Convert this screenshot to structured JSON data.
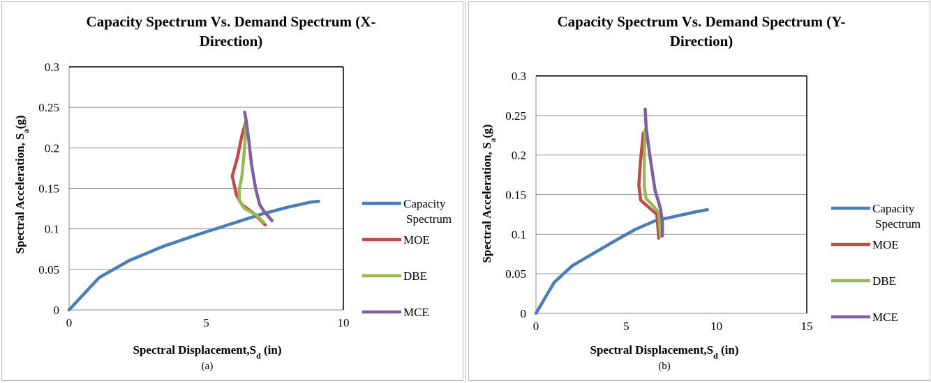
{
  "charts": [
    {
      "id": "a",
      "title_line1": "Capacity Spectrum Vs. Demand Spectrum (X-",
      "title_line2": "Direction)",
      "xlabel_main": "Spectral  Displacement,S",
      "xlabel_sub": "d",
      "xlabel_unit": " (in)",
      "ylabel_main": "Spectral Acceleration, S",
      "ylabel_sub": "a",
      "ylabel_unit": "(g)",
      "caption": "(a)",
      "legend": [
        "Capacity Spectrum",
        "MOE",
        "DBE",
        "MCE"
      ],
      "x_ticks": [
        "0",
        "5",
        "10"
      ],
      "y_ticks": [
        "0",
        "0.05",
        "0.1",
        "0.15",
        "0.2",
        "0.25",
        "0.3"
      ]
    },
    {
      "id": "b",
      "title_line1": "Capacity Spectrum Vs. Demand Spectrum (Y-",
      "title_line2": "Direction)",
      "xlabel_main": "Spectral  Displacement,S",
      "xlabel_sub": "d",
      "xlabel_unit": " (in)",
      "ylabel_main": "Spectral Acceleration, S",
      "ylabel_sub": "a",
      "ylabel_unit": "(g)",
      "caption": "(b)",
      "legend": [
        "Capacity Spectrum",
        "MOE",
        "DBE",
        "MCE"
      ],
      "x_ticks": [
        "0",
        "5",
        "10",
        "15"
      ],
      "y_ticks": [
        "0",
        "0.05",
        "0.1",
        "0.15",
        "0.2",
        "0.25",
        "0.3"
      ]
    }
  ],
  "colors": {
    "capacity": "#4a7ebb",
    "moe": "#be4b48",
    "dbe": "#98b954",
    "mce": "#7d60a0",
    "grid": "#8c8c8c"
  },
  "chart_data": [
    {
      "type": "line",
      "title": "Capacity Spectrum Vs. Demand Spectrum (X-Direction)",
      "xlabel": "Spectral Displacement,Sd (in)",
      "ylabel": "Spectral Acceleration, Sa(g)",
      "xlim": [
        0,
        10
      ],
      "ylim": [
        0,
        0.3
      ],
      "x_ticks": [
        0,
        5,
        10
      ],
      "y_ticks": [
        0,
        0.05,
        0.1,
        0.15,
        0.2,
        0.25,
        0.3
      ],
      "grid": true,
      "legend_position": "right",
      "series": [
        {
          "name": "Capacity Spectrum",
          "color": "#4a7ebb",
          "x": [
            0,
            1.1,
            2.2,
            3.4,
            4.6,
            5.8,
            7.0,
            8.0,
            8.8,
            9.1
          ],
          "y": [
            0,
            0.04,
            0.061,
            0.078,
            0.092,
            0.105,
            0.118,
            0.127,
            0.133,
            0.134
          ]
        },
        {
          "name": "MOE",
          "color": "#be4b48",
          "x": [
            7.15,
            6.7,
            6.3,
            6.1,
            5.95,
            6.15,
            6.3,
            6.45
          ],
          "y": [
            0.105,
            0.12,
            0.13,
            0.142,
            0.165,
            0.19,
            0.215,
            0.233
          ]
        },
        {
          "name": "DBE",
          "color": "#98b954",
          "x": [
            7.1,
            6.8,
            6.4,
            6.2,
            6.2,
            6.3,
            6.4,
            6.45
          ],
          "y": [
            0.108,
            0.118,
            0.125,
            0.135,
            0.148,
            0.165,
            0.2,
            0.23
          ]
        },
        {
          "name": "MCE",
          "color": "#7d60a0",
          "x": [
            7.4,
            7.1,
            6.95,
            6.8,
            6.65,
            6.55,
            6.45,
            6.4
          ],
          "y": [
            0.11,
            0.122,
            0.13,
            0.15,
            0.18,
            0.21,
            0.235,
            0.244
          ]
        }
      ]
    },
    {
      "type": "line",
      "title": "Capacity Spectrum Vs. Demand Spectrum (Y-Direction)",
      "xlabel": "Spectral Displacement,Sd (in)",
      "ylabel": "Spectral Acceleration, Sa(g)",
      "xlim": [
        0,
        15
      ],
      "ylim": [
        0,
        0.3
      ],
      "x_ticks": [
        0,
        5,
        10,
        15
      ],
      "y_ticks": [
        0,
        0.05,
        0.1,
        0.15,
        0.2,
        0.25,
        0.3
      ],
      "grid": true,
      "legend_position": "right",
      "series": [
        {
          "name": "Capacity Spectrum",
          "color": "#4a7ebb",
          "x": [
            0,
            1.0,
            2.0,
            3.2,
            4.4,
            5.5,
            6.6,
            7.8,
            8.8,
            9.5
          ],
          "y": [
            0,
            0.039,
            0.06,
            0.076,
            0.092,
            0.106,
            0.117,
            0.123,
            0.128,
            0.131
          ]
        },
        {
          "name": "MOE",
          "color": "#be4b48",
          "x": [
            6.8,
            6.75,
            6.7,
            6.1,
            5.8,
            5.7,
            5.8,
            5.95
          ],
          "y": [
            0.095,
            0.11,
            0.125,
            0.137,
            0.143,
            0.162,
            0.195,
            0.228
          ]
        },
        {
          "name": "DBE",
          "color": "#98b954",
          "x": [
            6.9,
            6.85,
            6.8,
            6.4,
            6.1,
            6.0,
            6.0,
            6.05
          ],
          "y": [
            0.097,
            0.112,
            0.128,
            0.138,
            0.145,
            0.16,
            0.2,
            0.232
          ]
        },
        {
          "name": "MCE",
          "color": "#7d60a0",
          "x": [
            7.0,
            7.0,
            6.9,
            6.8,
            6.6,
            6.3,
            6.1,
            6.05
          ],
          "y": [
            0.098,
            0.115,
            0.132,
            0.14,
            0.155,
            0.2,
            0.235,
            0.258
          ]
        }
      ]
    }
  ]
}
